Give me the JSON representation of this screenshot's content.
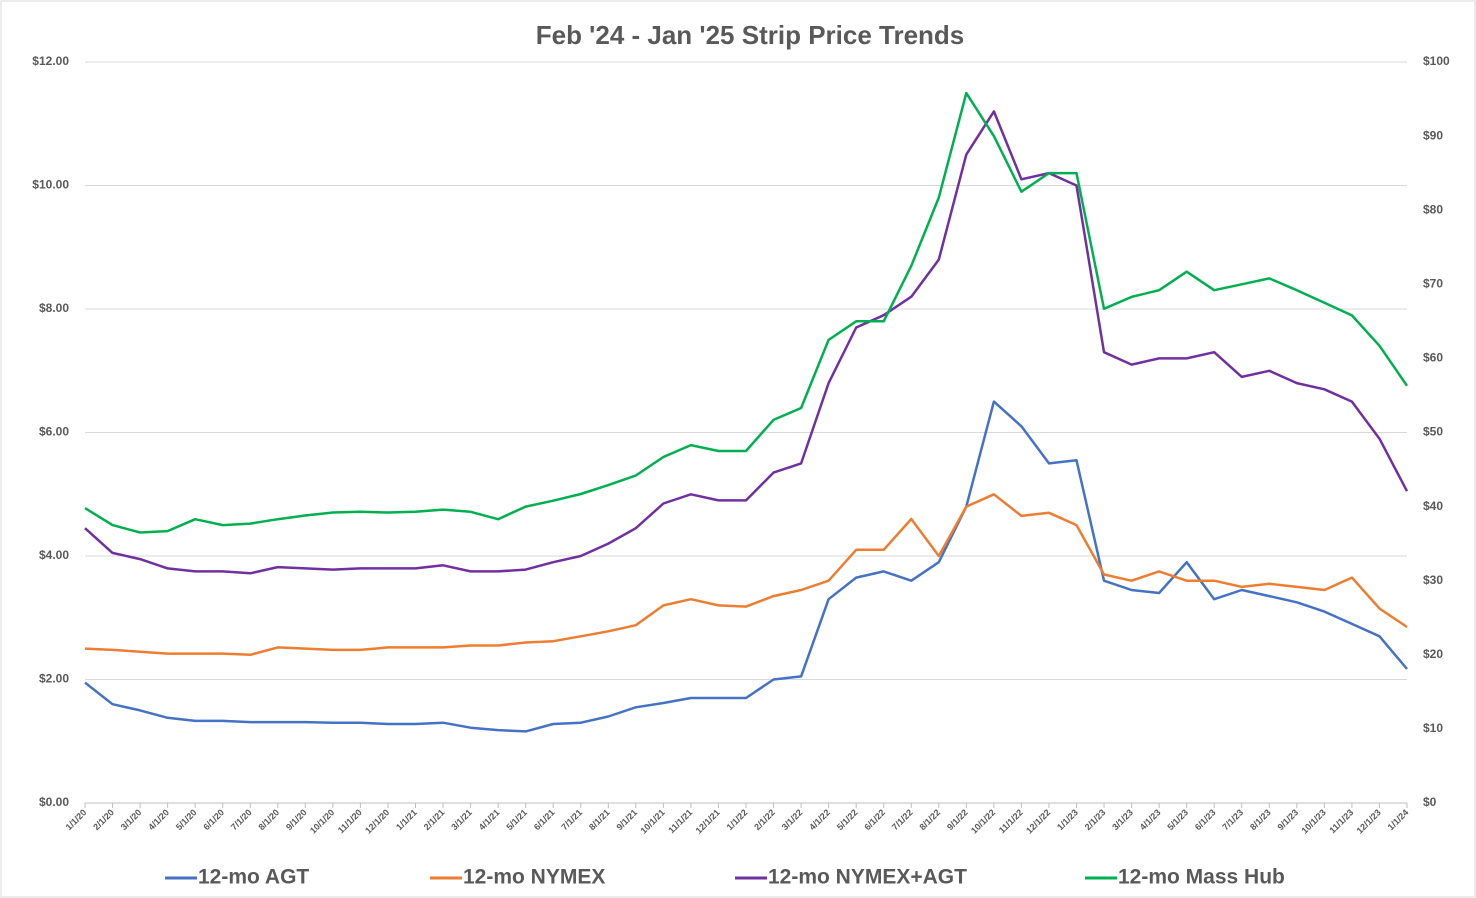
{
  "chart_data": {
    "type": "line",
    "title": "Feb '24 - Jan '25 Strip Price Trends",
    "x": [
      "1/1/20",
      "2/1/20",
      "3/1/20",
      "4/1/20",
      "5/1/20",
      "6/1/20",
      "7/1/20",
      "8/1/20",
      "9/1/20",
      "10/1/20",
      "11/1/20",
      "12/1/20",
      "1/1/21",
      "2/1/21",
      "3/1/21",
      "4/1/21",
      "5/1/21",
      "6/1/21",
      "7/1/21",
      "8/1/21",
      "9/1/21",
      "10/1/21",
      "11/1/21",
      "12/1/21",
      "1/1/22",
      "2/1/22",
      "3/1/22",
      "4/1/22",
      "5/1/22",
      "6/1/22",
      "7/1/22",
      "8/1/22",
      "9/1/22",
      "10/1/22",
      "11/1/22",
      "12/1/22",
      "1/1/23",
      "2/1/23",
      "3/1/23",
      "4/1/23",
      "5/1/23",
      "6/1/23",
      "7/1/23",
      "8/1/23",
      "9/1/23",
      "10/1/23",
      "11/1/23",
      "12/1/23",
      "1/1/24"
    ],
    "series": [
      {
        "name": "12-mo AGT",
        "color": "#4472c4",
        "values": [
          1.95,
          1.6,
          1.5,
          1.38,
          1.33,
          1.33,
          1.31,
          1.31,
          1.31,
          1.3,
          1.3,
          1.28,
          1.28,
          1.3,
          1.22,
          1.18,
          1.16,
          1.28,
          1.3,
          1.4,
          1.55,
          1.62,
          1.7,
          1.7,
          1.7,
          2.0,
          2.05,
          3.3,
          3.65,
          3.75,
          3.6,
          3.9,
          4.8,
          6.5,
          6.1,
          5.5,
          5.55,
          3.6,
          3.45,
          3.4,
          3.9,
          3.3,
          3.45,
          3.35,
          3.25,
          3.1,
          2.9,
          2.7,
          2.17
        ]
      },
      {
        "name": "12-mo NYMEX",
        "color": "#ed7d31",
        "values": [
          2.5,
          2.48,
          2.45,
          2.42,
          2.42,
          2.42,
          2.4,
          2.52,
          2.5,
          2.48,
          2.48,
          2.52,
          2.52,
          2.52,
          2.55,
          2.55,
          2.6,
          2.62,
          2.7,
          2.78,
          2.88,
          3.2,
          3.3,
          3.2,
          3.18,
          3.35,
          3.45,
          3.6,
          4.1,
          4.1,
          4.6,
          4.0,
          4.8,
          5.0,
          4.65,
          4.7,
          4.5,
          3.7,
          3.6,
          3.75,
          3.6,
          3.6,
          3.5,
          3.55,
          3.5,
          3.45,
          3.65,
          3.15,
          2.85
        ]
      },
      {
        "name": "12-mo NYMEX+AGT",
        "color": "#7030a0",
        "values": [
          4.45,
          4.05,
          3.95,
          3.8,
          3.75,
          3.75,
          3.72,
          3.82,
          3.8,
          3.78,
          3.8,
          3.8,
          3.8,
          3.85,
          3.75,
          3.75,
          3.78,
          3.9,
          4.0,
          4.2,
          4.45,
          4.85,
          5.0,
          4.9,
          4.9,
          5.35,
          5.5,
          6.8,
          7.7,
          7.9,
          8.2,
          8.8,
          10.5,
          11.2,
          10.1,
          10.2,
          10.0,
          7.3,
          7.1,
          7.2,
          7.2,
          7.3,
          6.9,
          7.0,
          6.8,
          6.7,
          6.5,
          5.9,
          5.05
        ]
      },
      {
        "name": "12-mo Mass Hub",
        "color": "#00b050",
        "axis": "y2",
        "values": [
          39.8,
          37.5,
          36.5,
          36.7,
          38.3,
          37.5,
          37.7,
          38.3,
          38.8,
          39.2,
          39.3,
          39.2,
          39.3,
          39.6,
          39.3,
          38.3,
          40,
          40.8,
          41.7,
          42.9,
          44.2,
          46.7,
          48.3,
          47.5,
          47.5,
          51.7,
          53.3,
          62.5,
          65,
          65,
          72.5,
          81.7,
          95.8,
          90,
          82.5,
          85,
          85,
          66.7,
          68.3,
          69.2,
          71.7,
          69.2,
          70,
          70.8,
          69.2,
          67.5,
          65.8,
          61.7,
          56.3
        ]
      }
    ],
    "ylim": [
      0,
      12
    ],
    "yticks": [
      {
        "value": 0,
        "label": "$0.00"
      },
      {
        "value": 2,
        "label": "$2.00"
      },
      {
        "value": 4,
        "label": "$4.00"
      },
      {
        "value": 6,
        "label": "$6.00"
      },
      {
        "value": 8,
        "label": "$8.00"
      },
      {
        "value": 10,
        "label": "$10.00"
      },
      {
        "value": 12,
        "label": "$12.00"
      }
    ],
    "y2lim": [
      0,
      100
    ],
    "y2ticks": [
      {
        "value": 0,
        "label": "$0"
      },
      {
        "value": 10,
        "label": "$10"
      },
      {
        "value": 20,
        "label": "$20"
      },
      {
        "value": 30,
        "label": "$30"
      },
      {
        "value": 40,
        "label": "$40"
      },
      {
        "value": 50,
        "label": "$50"
      },
      {
        "value": 60,
        "label": "$60"
      },
      {
        "value": 70,
        "label": "$70"
      },
      {
        "value": 80,
        "label": "$80"
      },
      {
        "value": 90,
        "label": "$90"
      },
      {
        "value": 100,
        "label": "$100"
      }
    ],
    "grid": true,
    "legend": "bottom"
  }
}
